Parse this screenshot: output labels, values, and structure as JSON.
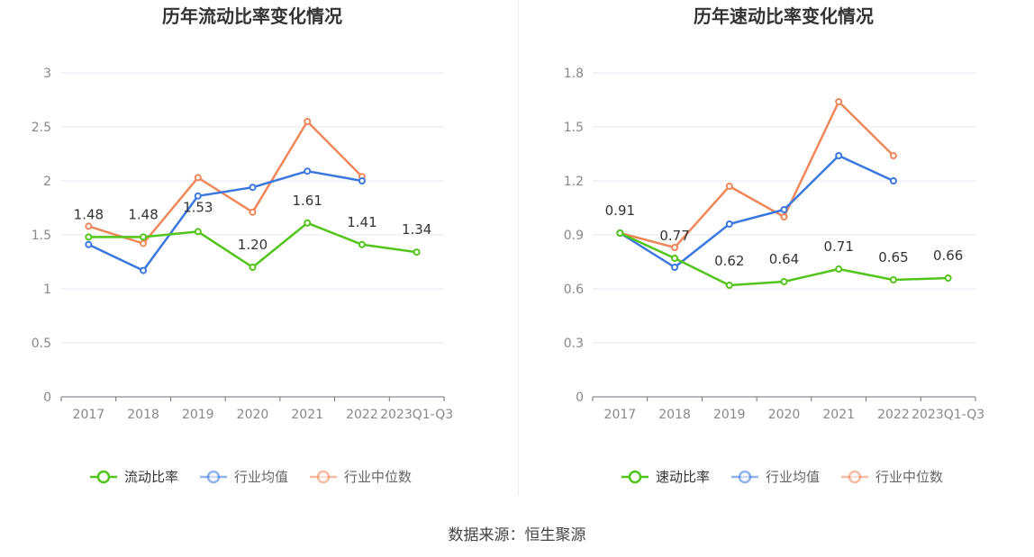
{
  "chart_data": [
    {
      "type": "line",
      "title": "历年流动比率变化情况",
      "categories": [
        "2017",
        "2018",
        "2019",
        "2020",
        "2021",
        "2022",
        "2023Q1-Q3"
      ],
      "ylim": [
        0,
        3
      ],
      "yticks": [
        "0",
        "0.5",
        "1",
        "1.5",
        "2",
        "2.5",
        "3"
      ],
      "ytick_values": [
        0,
        0.5,
        1,
        1.5,
        2,
        2.5,
        3
      ],
      "grid": true,
      "legend_position": "bottom",
      "series": [
        {
          "name": "流动比率",
          "color": "#52c41a",
          "values": [
            1.48,
            1.48,
            1.53,
            1.2,
            1.61,
            1.41,
            1.34
          ],
          "labels": [
            "1.48",
            "1.48",
            "1.53",
            "1.20",
            "1.61",
            "1.41",
            "1.34"
          ]
        },
        {
          "name": "行业均值",
          "color": "#3a78e0",
          "values": [
            1.41,
            1.17,
            1.86,
            1.94,
            2.09,
            2.0,
            null
          ]
        },
        {
          "name": "行业中位数",
          "color": "#f0875a",
          "values": [
            1.58,
            1.42,
            2.03,
            1.71,
            2.55,
            2.04,
            null
          ]
        }
      ]
    },
    {
      "type": "line",
      "title": "历年速动比率变化情况",
      "categories": [
        "2017",
        "2018",
        "2019",
        "2020",
        "2021",
        "2022",
        "2023Q1-Q3"
      ],
      "ylim": [
        0,
        1.8
      ],
      "yticks": [
        "0",
        "0.3",
        "0.6",
        "0.9",
        "1.2",
        "1.5",
        "1.8"
      ],
      "ytick_values": [
        0,
        0.3,
        0.6,
        0.9,
        1.2,
        1.5,
        1.8
      ],
      "grid": true,
      "legend_position": "bottom",
      "series": [
        {
          "name": "速动比率",
          "color": "#52c41a",
          "values": [
            0.91,
            0.77,
            0.62,
            0.64,
            0.71,
            0.65,
            0.66
          ],
          "labels": [
            "0.91",
            "0.77",
            "0.62",
            "0.64",
            "0.71",
            "0.65",
            "0.66"
          ]
        },
        {
          "name": "行业均值",
          "color": "#3a78e0",
          "values": [
            0.91,
            0.72,
            0.96,
            1.04,
            1.34,
            1.2,
            null
          ]
        },
        {
          "name": "行业中位数",
          "color": "#f0875a",
          "values": [
            0.91,
            0.83,
            1.17,
            1.0,
            1.64,
            1.34,
            null
          ]
        }
      ]
    }
  ],
  "footer": {
    "source": "数据来源：恒生聚源"
  }
}
